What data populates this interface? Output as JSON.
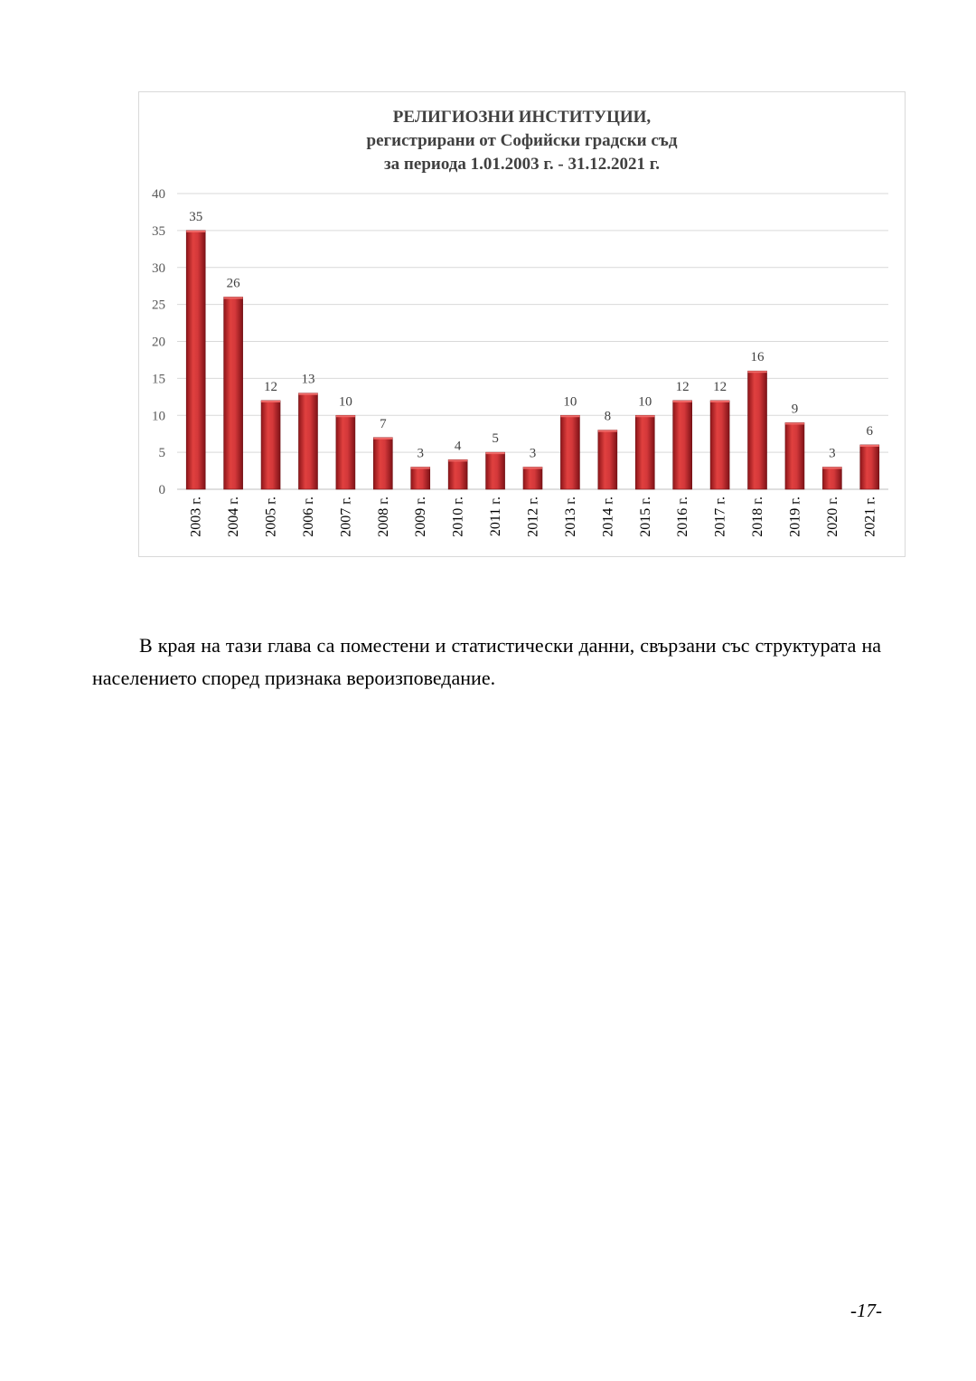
{
  "chart_data": {
    "type": "bar",
    "title_lines": [
      "РЕЛИГИОЗНИ ИНСТИТУЦИИ,",
      "регистрирани от Софийски градски съд",
      "за периода 1.01.2003 г. - 31.12.2021 г."
    ],
    "categories": [
      "2003 г.",
      "2004 г.",
      "2005 г.",
      "2006 г.",
      "2007 г.",
      "2008 г.",
      "2009 г.",
      "2010 г.",
      "2011 г.",
      "2012 г.",
      "2013 г.",
      "2014 г.",
      "2015 г.",
      "2016 г.",
      "2017 г.",
      "2018 г.",
      "2019 г.",
      "2020 г.",
      "2021 г."
    ],
    "values": [
      35,
      26,
      12,
      13,
      10,
      7,
      3,
      4,
      5,
      3,
      10,
      8,
      10,
      12,
      12,
      16,
      9,
      3,
      6
    ],
    "ylim": [
      0,
      40
    ],
    "yticks": [
      0,
      5,
      10,
      15,
      20,
      25,
      30,
      35,
      40
    ],
    "grid": true,
    "bar_color": "#c8282d",
    "data_labels": true
  },
  "paragraph": "В края на тази глава са поместени и статистически данни, свързани със структурата на населението според признака вероизповедание.",
  "page_number": "-17-"
}
